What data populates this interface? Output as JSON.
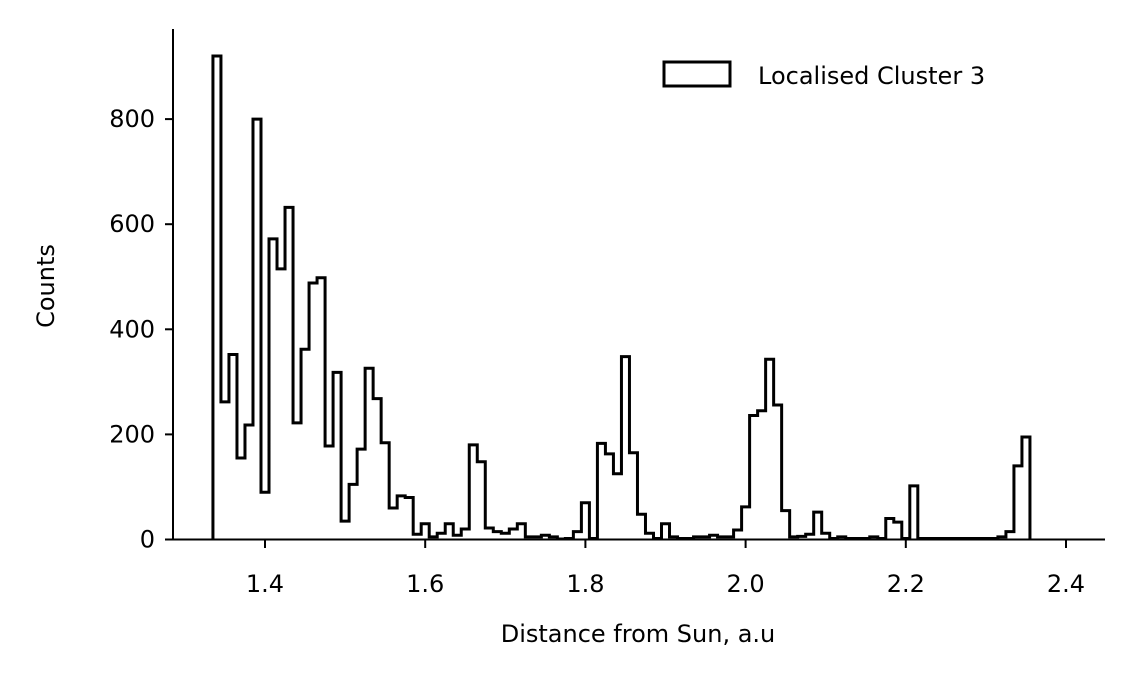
{
  "chart_data": {
    "type": "histogram",
    "xlabel": "Distance from Sun, a.u",
    "ylabel": "Counts",
    "legend_placement": "top-right",
    "grid": false,
    "xlim": [
      1.283,
      1.446
    ],
    "ylim": [
      0,
      970
    ],
    "x_ticks": [
      1.4,
      1.6,
      1.8,
      2.0,
      2.2,
      2.4
    ],
    "x_tick_labels": [
      "1.4",
      "1.6",
      "1.8",
      "2.0",
      "2.2",
      "2.4"
    ],
    "y_ticks": [
      0,
      200,
      400,
      600,
      800
    ],
    "y_tick_labels": [
      "0",
      "200",
      "400",
      "600",
      "800"
    ],
    "series": [
      {
        "name": "Localised Cluster 3",
        "style": "step",
        "color": "#000000",
        "bin_start": 1.335,
        "bin_width": 0.01,
        "values": [
          920,
          262,
          352,
          155,
          218,
          800,
          90,
          572,
          515,
          632,
          222,
          362,
          488,
          498,
          178,
          318,
          35,
          105,
          172,
          326,
          268,
          184,
          60,
          83,
          80,
          10,
          30,
          5,
          12,
          30,
          8,
          20,
          180,
          148,
          22,
          15,
          12,
          20,
          30,
          5,
          5,
          8,
          5,
          1,
          2,
          15,
          70,
          2,
          183,
          163,
          125,
          348,
          165,
          48,
          12,
          2,
          30,
          5,
          2,
          2,
          5,
          5,
          8,
          5,
          5,
          18,
          62,
          236,
          245,
          343,
          256,
          55,
          5,
          6,
          10,
          52,
          12,
          2,
          5,
          2,
          2,
          2,
          5,
          2,
          40,
          33,
          2,
          102,
          2,
          2,
          2,
          2,
          2,
          2,
          2,
          2,
          2,
          2,
          5,
          15,
          140,
          195
        ]
      }
    ]
  }
}
